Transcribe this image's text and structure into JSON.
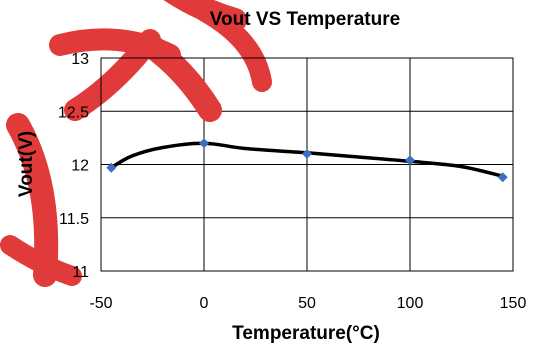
{
  "chart_data": {
    "type": "scatter",
    "title": "Vout VS Temperature",
    "xlabel": "Temperature(°C)",
    "ylabel": "Vout(V)",
    "xlim": [
      -50,
      150
    ],
    "ylim": [
      11,
      13
    ],
    "xticks": [
      "-50",
      "0",
      "50",
      "100",
      "150"
    ],
    "yticks": [
      "11",
      "11.5",
      "12",
      "12.5",
      "13"
    ],
    "grid": true,
    "points": [
      {
        "x": -45,
        "y": 11.97
      },
      {
        "x": 0,
        "y": 12.2
      },
      {
        "x": 50,
        "y": 12.1
      },
      {
        "x": 100,
        "y": 12.04
      },
      {
        "x": 145,
        "y": 11.88
      }
    ],
    "trend": [
      {
        "x": -45,
        "y": 11.97
      },
      {
        "x": -35,
        "y": 12.08
      },
      {
        "x": -20,
        "y": 12.16
      },
      {
        "x": 0,
        "y": 12.2
      },
      {
        "x": 20,
        "y": 12.15
      },
      {
        "x": 50,
        "y": 12.11
      },
      {
        "x": 75,
        "y": 12.07
      },
      {
        "x": 100,
        "y": 12.03
      },
      {
        "x": 125,
        "y": 11.98
      },
      {
        "x": 145,
        "y": 11.89
      }
    ],
    "marker_color": "#3A6FC4",
    "line_color": "#000000",
    "watermark_color": "#E03A3A"
  }
}
